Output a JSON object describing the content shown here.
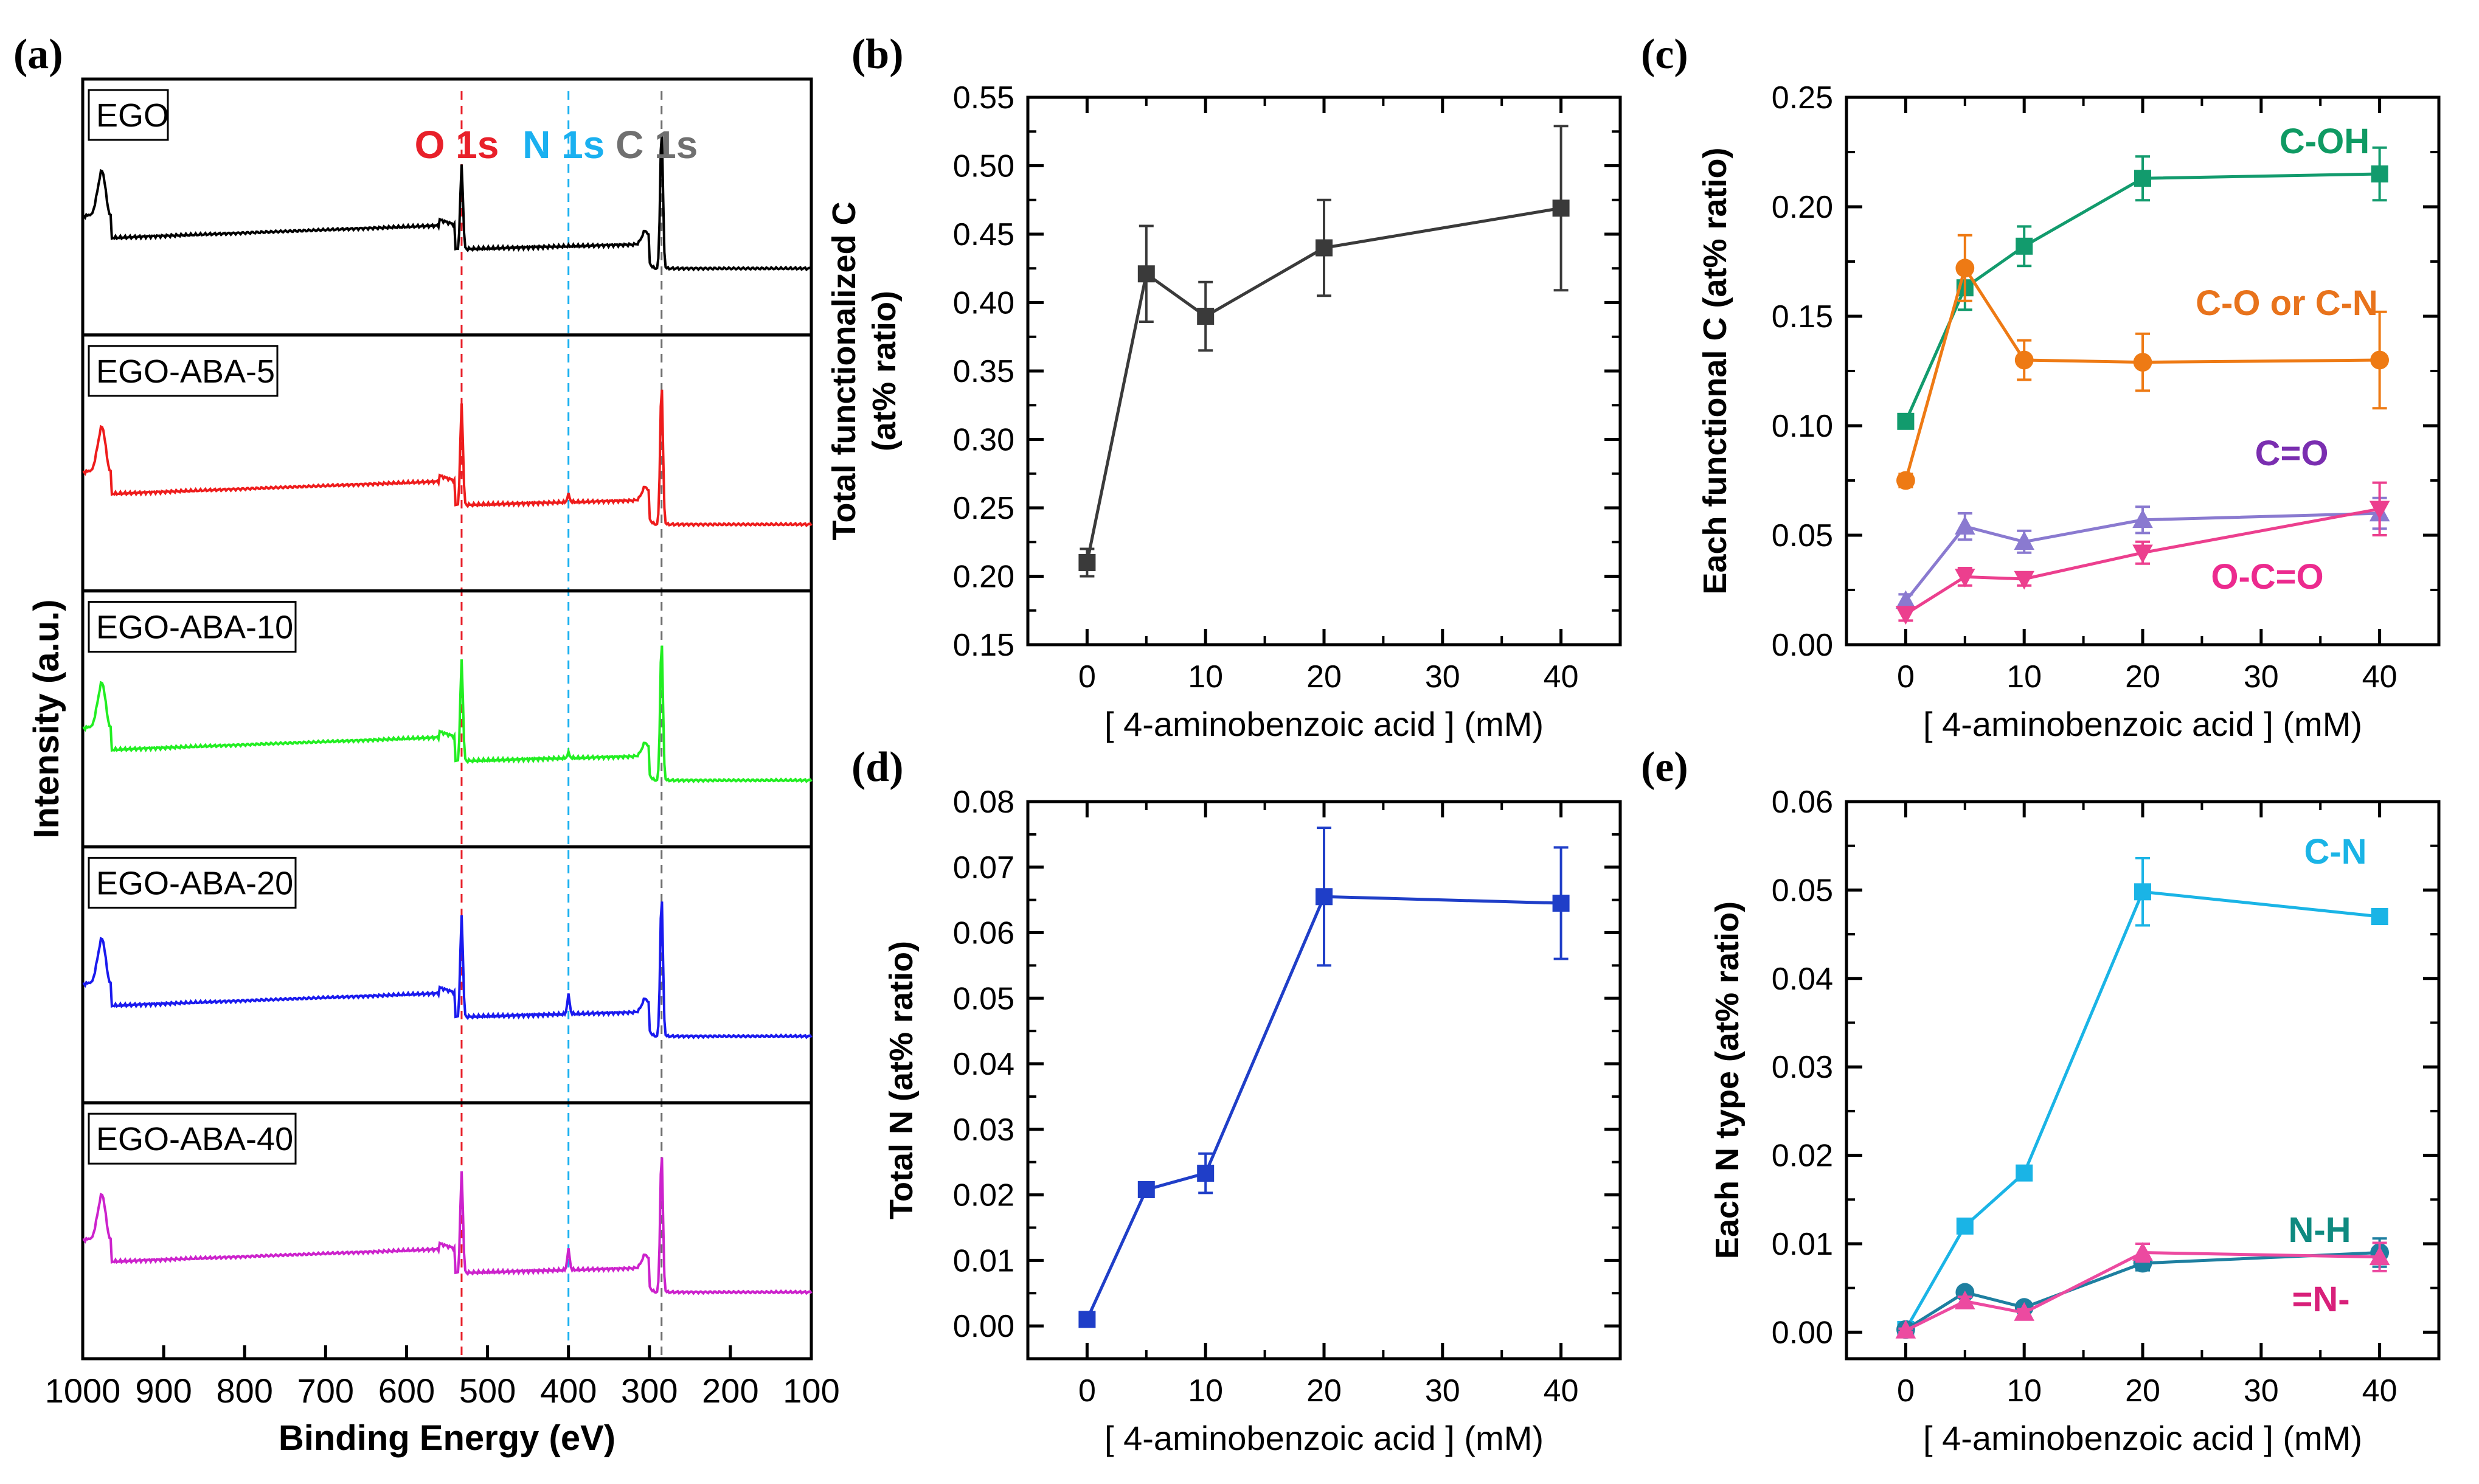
{
  "chart_data": {
    "panel_a": {
      "type": "line",
      "letter": "(a)",
      "ylabel": "Intensity (a.u.)",
      "xlabel": "Binding Energy (eV)",
      "xlim": [
        1000,
        100
      ],
      "xticks": [
        "1000",
        "900",
        "800",
        "700",
        "600",
        "500",
        "400",
        "300",
        "200",
        "100"
      ],
      "peak_labels": [
        {
          "text": "O 1s",
          "energy": 532,
          "color": "#e8202a"
        },
        {
          "text": "N 1s",
          "energy": 400,
          "color": "#1ab0f0"
        },
        {
          "text": "C 1s",
          "energy": 285,
          "color": "#707070"
        }
      ],
      "spectra": [
        {
          "name": "EGO",
          "color": "#000000",
          "n1s": 0
        },
        {
          "name": "EGO-ABA-5",
          "color": "#ee1c1c",
          "n1s": 0.12
        },
        {
          "name": "EGO-ABA-10",
          "color": "#22ee22",
          "n1s": 0.08
        },
        {
          "name": "EGO-ABA-20",
          "color": "#1a1aee",
          "n1s": 0.3
        },
        {
          "name": "EGO-ABA-40",
          "color": "#cc22cc",
          "n1s": 0.32
        }
      ]
    },
    "panel_b": {
      "type": "line",
      "letter": "(b)",
      "ylabel_line1": "Total functionalized C",
      "ylabel_line2": "(at% ratio)",
      "xlabel": "[ 4-aminobenzoic acid ] (mM)",
      "xlim": [
        -5,
        45
      ],
      "ylim": [
        0.15,
        0.55
      ],
      "xticks": [
        "0",
        "10",
        "20",
        "30",
        "40"
      ],
      "yticks": [
        "0.15",
        "0.20",
        "0.25",
        "0.30",
        "0.35",
        "0.40",
        "0.45",
        "0.50",
        "0.55"
      ],
      "series": [
        {
          "name": "Total functionalized C",
          "color": "#3a3a3a",
          "marker": "square",
          "x": [
            0,
            5,
            10,
            20,
            40
          ],
          "values": [
            0.21,
            0.421,
            0.39,
            0.44,
            0.469
          ],
          "errors": [
            0.01,
            0.035,
            0.025,
            0.035,
            0.06
          ]
        }
      ]
    },
    "panel_c": {
      "type": "line",
      "letter": "(c)",
      "ylabel": "Each functional C (at% ratio)",
      "xlabel": "[ 4-aminobenzoic acid ] (mM)",
      "xlim": [
        -5,
        45
      ],
      "ylim": [
        0.0,
        0.25
      ],
      "xticks": [
        "0",
        "10",
        "20",
        "30",
        "40"
      ],
      "yticks": [
        "0.00",
        "0.05",
        "0.10",
        "0.15",
        "0.20",
        "0.25"
      ],
      "series": [
        {
          "name": "C-OH",
          "color": "#129b6d",
          "marker": "square",
          "x": [
            0,
            5,
            10,
            20,
            40
          ],
          "values": [
            0.102,
            0.163,
            0.182,
            0.213,
            0.215
          ],
          "errors": [
            0.003,
            0.01,
            0.009,
            0.01,
            0.012
          ]
        },
        {
          "name": "C-O or C-N",
          "color": "#ee7a14",
          "marker": "circle",
          "x": [
            0,
            5,
            10,
            20,
            40
          ],
          "values": [
            0.075,
            0.172,
            0.13,
            0.129,
            0.13
          ],
          "errors": [
            0.003,
            0.015,
            0.009,
            0.013,
            0.022
          ]
        },
        {
          "name": "C=O",
          "color": "#8a7ad0",
          "marker": "triangle-up",
          "x": [
            0,
            5,
            10,
            20,
            40
          ],
          "values": [
            0.02,
            0.054,
            0.047,
            0.057,
            0.06
          ],
          "errors": [
            0.003,
            0.006,
            0.005,
            0.006,
            0.007
          ]
        },
        {
          "name": "O-C=O",
          "color": "#ec3f8e",
          "marker": "triangle-down",
          "x": [
            0,
            5,
            10,
            20,
            40
          ],
          "values": [
            0.014,
            0.031,
            0.03,
            0.042,
            0.062
          ],
          "errors": [
            0.003,
            0.004,
            0.003,
            0.005,
            0.012
          ]
        }
      ],
      "label_colors": {
        "C-OH": "#0f9a63",
        "C-O or C-N": "#e8731c",
        "C=O": "#7a2eb0",
        "O-C=O": "#ec2a8e"
      }
    },
    "panel_d": {
      "type": "line",
      "letter": "(d)",
      "ylabel": "Total N (at% ratio)",
      "xlabel": "[ 4-aminobenzoic acid ] (mM)",
      "xlim": [
        -5,
        45
      ],
      "ylim": [
        -0.005,
        0.08
      ],
      "xticks": [
        "0",
        "10",
        "20",
        "30",
        "40"
      ],
      "yticks": [
        "0.00",
        "0.01",
        "0.02",
        "0.03",
        "0.04",
        "0.05",
        "0.06",
        "0.07",
        "0.08"
      ],
      "series": [
        {
          "name": "Total N",
          "color": "#1f3ec8",
          "marker": "square",
          "x": [
            0,
            5,
            10,
            20,
            40
          ],
          "values": [
            0.001,
            0.0208,
            0.0233,
            0.0655,
            0.0645
          ],
          "errors": [
            0.001,
            0.001,
            0.003,
            0.0105,
            0.0085
          ]
        }
      ]
    },
    "panel_e": {
      "type": "line",
      "letter": "(e)",
      "ylabel": "Each N type (at% ratio)",
      "xlabel": "[ 4-aminobenzoic acid ] (mM)",
      "xlim": [
        -5,
        45
      ],
      "ylim": [
        -0.003,
        0.06
      ],
      "xticks": [
        "0",
        "10",
        "20",
        "30",
        "40"
      ],
      "yticks": [
        "0.00",
        "0.01",
        "0.02",
        "0.03",
        "0.04",
        "0.05",
        "0.06"
      ],
      "series": [
        {
          "name": "C-N",
          "color": "#1ab4e6",
          "marker": "square",
          "x": [
            0,
            5,
            10,
            20,
            40
          ],
          "values": [
            0.0003,
            0.012,
            0.018,
            0.0498,
            0.047
          ],
          "errors": [
            0.0002,
            0.0004,
            0.0006,
            0.0038,
            0.0006
          ]
        },
        {
          "name": "N-H",
          "color": "#1e7fa0",
          "marker": "circle",
          "x": [
            0,
            5,
            10,
            20,
            40
          ],
          "values": [
            0.0003,
            0.0045,
            0.0028,
            0.0078,
            0.009
          ],
          "errors": [
            0.0002,
            0.0006,
            0.0004,
            0.0008,
            0.0016
          ]
        },
        {
          "name": "=N-",
          "color": "#ec4aa0",
          "marker": "triangle-up",
          "x": [
            0,
            5,
            10,
            20,
            40
          ],
          "values": [
            0.0002,
            0.0035,
            0.0022,
            0.009,
            0.0085
          ],
          "errors": [
            0.0002,
            0.0005,
            0.0004,
            0.001,
            0.0016
          ]
        }
      ],
      "label_colors": {
        "C-N": "#1ab4e6",
        "N-H": "#0f8a80",
        "=N-": "#d8207a"
      }
    }
  }
}
